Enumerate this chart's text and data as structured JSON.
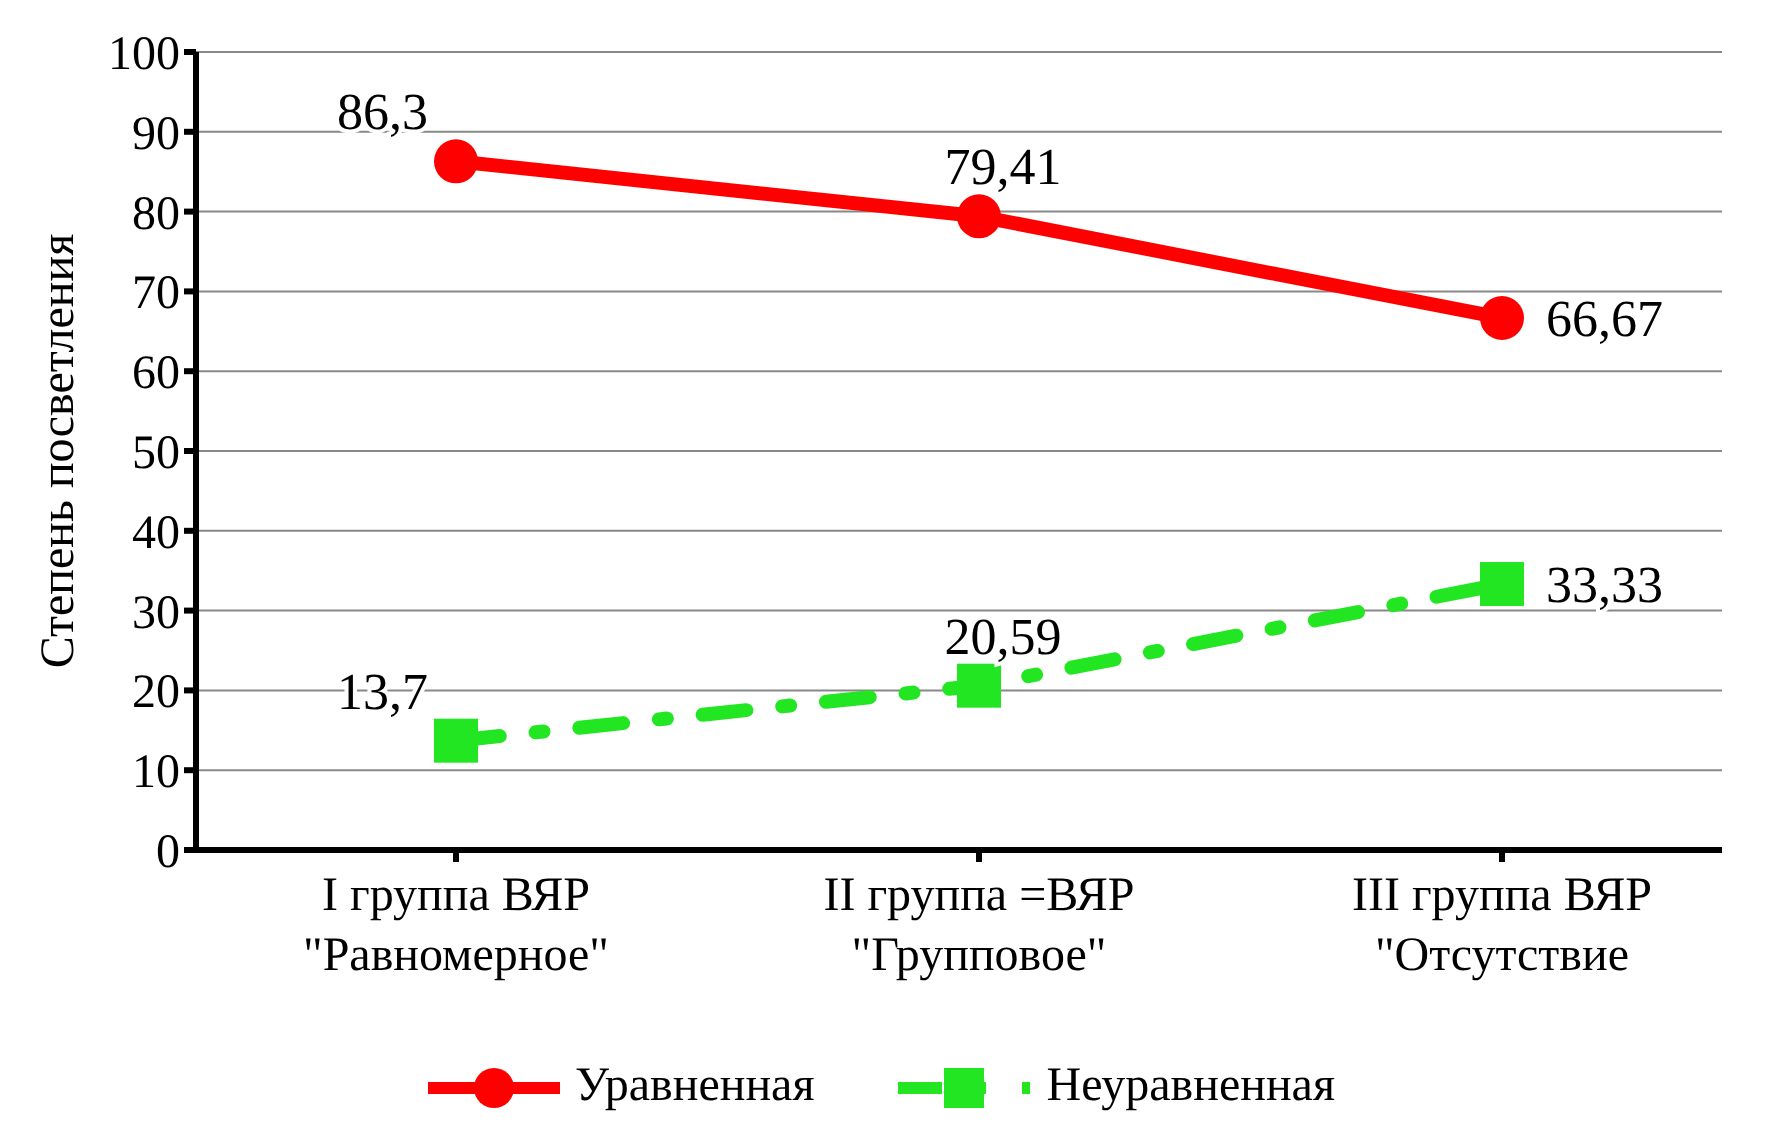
{
  "chart_data": {
    "type": "line",
    "ylabel": "Степень посветления",
    "categories": [
      "I группа ВЯР\n\"Равномерное\"",
      "II группа =ВЯР\n\"Групповое\"",
      "III группа ВЯР\n\"Отсутствие"
    ],
    "series": [
      {
        "name": "Уравненная",
        "color": "#ff0000",
        "values": [
          86.3,
          79.41,
          66.67
        ],
        "value_labels": [
          "86,3",
          "79,41",
          "66,67"
        ],
        "marker": "circle",
        "line_style": "solid"
      },
      {
        "name": "Неуравненная",
        "color": "#22e622",
        "values": [
          13.7,
          20.59,
          33.33
        ],
        "value_labels": [
          "13,7",
          "20,59",
          "33,33"
        ],
        "marker": "square",
        "line_style": "dashed"
      }
    ],
    "ylim": [
      0,
      100
    ],
    "yticks": [
      0,
      10,
      20,
      30,
      40,
      50,
      60,
      70,
      80,
      90,
      100
    ],
    "grid": "y",
    "legend": "bottom"
  }
}
